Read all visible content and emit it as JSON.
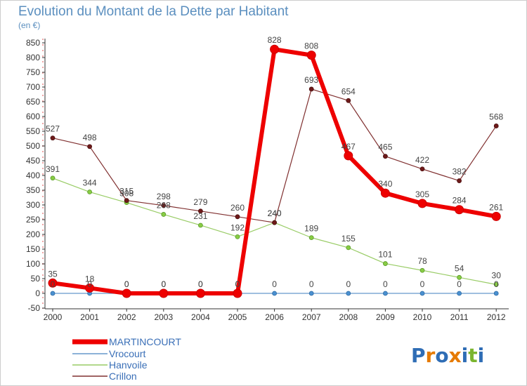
{
  "chart_data": {
    "type": "line",
    "title": "Evolution du Montant de la Dette par Habitant",
    "subtitle": "(en €)",
    "xlabel": "",
    "ylabel": "",
    "categories": [
      "2000",
      "2001",
      "2002",
      "2003",
      "2004",
      "2005",
      "2006",
      "2007",
      "2008",
      "2009",
      "2010",
      "2011",
      "2012"
    ],
    "ylim": [
      -50,
      850
    ],
    "yticks": [
      -50,
      0,
      50,
      100,
      150,
      200,
      250,
      300,
      350,
      400,
      450,
      500,
      550,
      600,
      650,
      700,
      750,
      800,
      850
    ],
    "grid": false,
    "legend_position": "bottom-left",
    "series": [
      {
        "name": "MARTINCOURT",
        "color": "#ee0000",
        "values": [
          35,
          18,
          0,
          0,
          0,
          0,
          828,
          808,
          467,
          340,
          305,
          284,
          261
        ],
        "labels": [
          "35",
          "18",
          "0",
          "0",
          "0",
          "0",
          "828",
          "808",
          "467",
          "340",
          "305",
          "284",
          "261"
        ]
      },
      {
        "name": "Vrocourt",
        "color": "#6699cc",
        "values": [
          0,
          0,
          0,
          0,
          0,
          0,
          0,
          0,
          0,
          0,
          0,
          0,
          0
        ],
        "labels": [
          "0",
          "0",
          "0",
          "0",
          "0",
          "0",
          "0",
          "0",
          "0",
          "0",
          "0",
          "0",
          "0"
        ]
      },
      {
        "name": "Hanvoile",
        "color": "#99cc66",
        "values": [
          391,
          344,
          308,
          268,
          231,
          192,
          240,
          189,
          155,
          101,
          78,
          54,
          30
        ],
        "labels": [
          "391",
          "344",
          "308",
          "268",
          "231",
          "192",
          "240",
          "189",
          "155",
          "101",
          "78",
          "54",
          "30"
        ]
      },
      {
        "name": "Crillon",
        "color": "#803030",
        "values": [
          527,
          498,
          315,
          298,
          279,
          260,
          240,
          693,
          654,
          465,
          422,
          382,
          568
        ],
        "labels": [
          "527",
          "498",
          "315",
          "298",
          "279",
          "260",
          "240",
          "693",
          "654",
          "465",
          "422",
          "382",
          "568"
        ]
      }
    ]
  },
  "logo": {
    "text": "Proxiti",
    "letters": [
      "P",
      "r",
      "o",
      "x",
      "i",
      "t",
      "i"
    ],
    "colors": [
      "#2f6db5",
      "#e67a00",
      "#2f6db5",
      "#e67a00",
      "#2f6db5",
      "#7bb52f",
      "#2f6db5"
    ]
  }
}
